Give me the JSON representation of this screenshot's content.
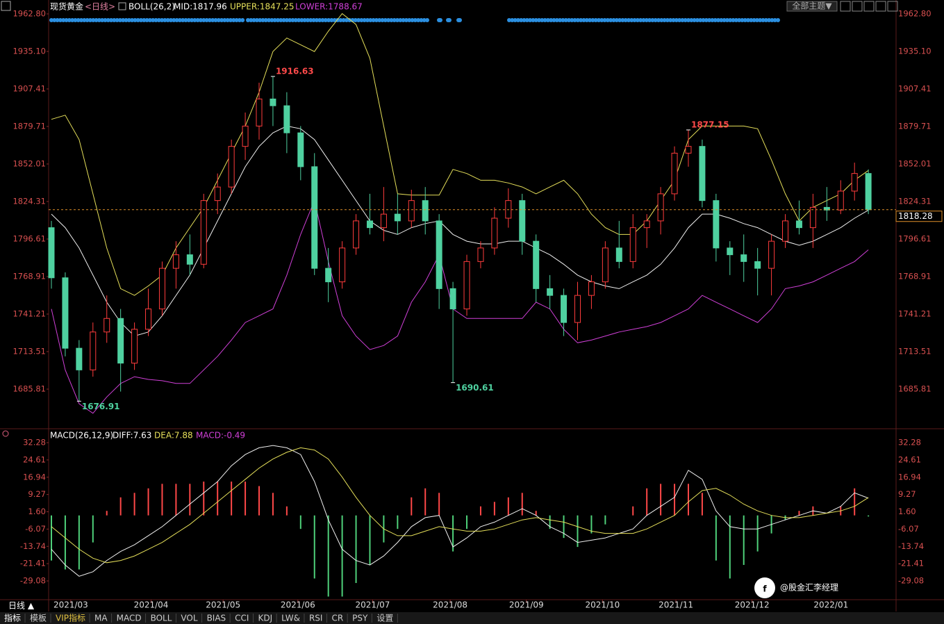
{
  "header": {
    "symbol": "现货黄金",
    "period": "<日线>",
    "indicator": "BOLL(26,2)",
    "mid": "MID:1817.96",
    "upper": "UPPER:1847.25",
    "lower": "LOWER:1788.67",
    "theme_button": "全部主题▼"
  },
  "macd_legend": {
    "name": "MACD(26,12,9)",
    "diff": "DIFF:7.63",
    "dea": "DEA:7.88",
    "macd": "MACD:-0.49"
  },
  "period_button": "日线 ▲",
  "tabs": [
    "指标",
    "模板",
    "VIP指标",
    "MA",
    "MACD",
    "BOLL",
    "VOL",
    "BIAS",
    "CCI",
    "KDJ",
    "LW&",
    "RSI",
    "CR",
    "PSY",
    "设置"
  ],
  "watermark": "@股金汇李经理",
  "chart_data": [
    {
      "type": "candlestick",
      "xlim": [
        -0.2,
        61
      ],
      "ylim": [
        1657.6,
        1965.36
      ],
      "yticks": [
        {
          "value": 1962.8,
          "label": "1962.80"
        },
        {
          "value": 1935.1,
          "label": "1935.10"
        },
        1907.41,
        1879.71,
        1852.01,
        1824.31,
        1796.61,
        1768.91,
        1741.21,
        1713.51,
        1685.81
      ],
      "up_color": "#ff3c3c",
      "down_color": "#4fd1a0",
      "open": [
        1805,
        1768,
        1716,
        1700,
        1728,
        1738,
        1705,
        1730,
        1745,
        1775,
        1785,
        1778,
        1825,
        1835,
        1865,
        1880,
        1900,
        1895,
        1875,
        1850,
        1775,
        1765,
        1790,
        1810,
        1805,
        1815,
        1810,
        1825,
        1810,
        1760,
        1745,
        1780,
        1790,
        1812,
        1825,
        1795,
        1760,
        1755,
        1735,
        1755,
        1765,
        1790,
        1780,
        1805,
        1810,
        1830,
        1860,
        1865,
        1825,
        1790,
        1785,
        1780,
        1775,
        1795,
        1810,
        1805,
        1820,
        1818,
        1832,
        1845
      ],
      "high": [
        1810,
        1772,
        1722,
        1735,
        1755,
        1745,
        1735,
        1760,
        1780,
        1795,
        1800,
        1830,
        1845,
        1870,
        1890,
        1912,
        1916.63,
        1905,
        1880,
        1860,
        1790,
        1795,
        1815,
        1830,
        1835,
        1830,
        1833,
        1835,
        1815,
        1765,
        1785,
        1795,
        1820,
        1834,
        1830,
        1800,
        1770,
        1760,
        1765,
        1770,
        1795,
        1810,
        1815,
        1815,
        1835,
        1865,
        1877.15,
        1870,
        1830,
        1795,
        1800,
        1790,
        1800,
        1815,
        1825,
        1830,
        1835,
        1840,
        1853,
        1848
      ],
      "low": [
        1760,
        1710,
        1676.91,
        1695,
        1720,
        1684,
        1700,
        1725,
        1740,
        1760,
        1770,
        1775,
        1815,
        1830,
        1855,
        1870,
        1880,
        1860,
        1840,
        1770,
        1750,
        1760,
        1785,
        1800,
        1795,
        1800,
        1805,
        1800,
        1745,
        1690.61,
        1740,
        1775,
        1785,
        1805,
        1785,
        1750,
        1745,
        1725,
        1722,
        1745,
        1760,
        1775,
        1775,
        1790,
        1800,
        1825,
        1850,
        1820,
        1780,
        1770,
        1765,
        1755,
        1755,
        1790,
        1800,
        1790,
        1810,
        1815,
        1825,
        1815
      ],
      "close": [
        1768,
        1716,
        1700,
        1728,
        1738,
        1705,
        1730,
        1745,
        1775,
        1785,
        1778,
        1825,
        1835,
        1865,
        1880,
        1900,
        1895,
        1875,
        1850,
        1775,
        1765,
        1790,
        1810,
        1805,
        1815,
        1810,
        1825,
        1810,
        1760,
        1745,
        1780,
        1790,
        1812,
        1825,
        1795,
        1760,
        1755,
        1735,
        1755,
        1765,
        1790,
        1780,
        1805,
        1810,
        1830,
        1860,
        1865,
        1825,
        1790,
        1785,
        1780,
        1775,
        1795,
        1810,
        1805,
        1820,
        1818,
        1832,
        1845,
        1818.28
      ],
      "series": [
        {
          "name": "MID",
          "color": "#f0f0f0",
          "values": [
            1815,
            1805,
            1790,
            1770,
            1750,
            1735,
            1725,
            1728,
            1740,
            1755,
            1770,
            1790,
            1810,
            1830,
            1850,
            1865,
            1875,
            1880,
            1878,
            1870,
            1855,
            1840,
            1825,
            1810,
            1803,
            1800,
            1805,
            1808,
            1810,
            1800,
            1795,
            1793,
            1793,
            1795,
            1795,
            1790,
            1785,
            1778,
            1770,
            1765,
            1762,
            1760,
            1765,
            1770,
            1778,
            1790,
            1805,
            1815,
            1815,
            1812,
            1808,
            1805,
            1800,
            1795,
            1792,
            1795,
            1800,
            1805,
            1812,
            1817.96
          ]
        },
        {
          "name": "UPPER",
          "color": "#e6e05a",
          "values": [
            1885,
            1888,
            1870,
            1830,
            1790,
            1760,
            1755,
            1762,
            1770,
            1790,
            1805,
            1820,
            1840,
            1860,
            1880,
            1905,
            1935,
            1945,
            1940,
            1935,
            1950,
            1963,
            1955,
            1930,
            1880,
            1830,
            1829,
            1829,
            1829,
            1848,
            1845,
            1840,
            1840,
            1838,
            1835,
            1830,
            1835,
            1840,
            1830,
            1815,
            1805,
            1800,
            1800,
            1810,
            1825,
            1840,
            1870,
            1880,
            1880,
            1880,
            1880,
            1878,
            1855,
            1830,
            1810,
            1820,
            1825,
            1830,
            1840,
            1847.25
          ]
        },
        {
          "name": "LOWER",
          "color": "#d040d8",
          "values": [
            1745,
            1700,
            1675,
            1668,
            1680,
            1690,
            1695,
            1693,
            1692,
            1690,
            1690,
            1700,
            1710,
            1722,
            1735,
            1740,
            1745,
            1770,
            1800,
            1825,
            1780,
            1740,
            1725,
            1715,
            1718,
            1725,
            1750,
            1765,
            1785,
            1745,
            1738,
            1738,
            1738,
            1738,
            1738,
            1750,
            1745,
            1730,
            1720,
            1722,
            1725,
            1728,
            1730,
            1732,
            1735,
            1740,
            1745,
            1755,
            1750,
            1745,
            1740,
            1735,
            1745,
            1760,
            1762,
            1765,
            1770,
            1775,
            1780,
            1788.67
          ]
        }
      ],
      "last_price_line_color": "#e0902a"
    },
    {
      "type": "macd",
      "xlim": [
        -0.2,
        61
      ],
      "ylim": [
        -37.09,
        33.82
      ],
      "yticks": [
        32.28,
        24.61,
        16.94,
        9.27,
        {
          "value": 1.6,
          "label": "1.60"
        },
        -6.07,
        -13.74,
        -21.41,
        -29.08
      ],
      "xticks": [
        {
          "value": 1.4,
          "label": "2021/03"
        },
        {
          "value": 7.2,
          "label": "2021/04"
        },
        {
          "value": 12.4,
          "label": "2021/05"
        },
        {
          "value": 17.8,
          "label": "2021/06"
        },
        {
          "value": 23.2,
          "label": "2021/07"
        },
        {
          "value": 28.8,
          "label": "2021/08"
        },
        {
          "value": 34.3,
          "label": "2021/09"
        },
        {
          "value": 39.8,
          "label": "2021/10"
        },
        {
          "value": 45.1,
          "label": "2021/11"
        },
        {
          "value": 50.6,
          "label": "2021/12"
        },
        {
          "value": 56.3,
          "label": "2022/01"
        }
      ],
      "up_color": "#ff4848",
      "down_color": "#4fd17a",
      "histogram": [
        -20,
        -24,
        -24,
        -12,
        2,
        8,
        10,
        12,
        14,
        14,
        14,
        15,
        15,
        15,
        15,
        13,
        10,
        4,
        -6,
        -28,
        -36,
        -36,
        -30,
        -22,
        -12,
        -6,
        8,
        12,
        10,
        -16,
        -6,
        4,
        6,
        8,
        10,
        2,
        -6,
        -10,
        -14,
        -8,
        -4,
        0,
        4,
        12,
        14,
        14,
        14,
        10,
        -20,
        -28,
        -22,
        -16,
        -8,
        -2,
        2,
        4,
        0,
        4,
        12,
        -0.49
      ],
      "series": [
        {
          "name": "DIFF",
          "color": "#f0f0f0",
          "values": [
            -15,
            -22,
            -27,
            -25,
            -20,
            -16,
            -13,
            -9,
            -5,
            0,
            5,
            10,
            15,
            22,
            27,
            30,
            31,
            30,
            27,
            15,
            -2,
            -15,
            -20,
            -22,
            -18,
            -12,
            -5,
            -1,
            0,
            -14,
            -10,
            -5,
            -3,
            0,
            3,
            0,
            -5,
            -8,
            -12,
            -11,
            -10,
            -8,
            -6,
            0,
            4,
            8,
            20,
            16,
            2,
            -5,
            -6,
            -6,
            -4,
            -2,
            0,
            2,
            1,
            4,
            10,
            7.63
          ]
        },
        {
          "name": "DEA",
          "color": "#e6e05a",
          "values": [
            -5,
            -10,
            -15,
            -19,
            -21,
            -20,
            -18,
            -15,
            -12,
            -8,
            -4,
            1,
            6,
            11,
            16,
            21,
            25,
            28,
            30,
            29,
            25,
            17,
            8,
            0,
            -6,
            -9,
            -9,
            -7,
            -5,
            -6,
            -7,
            -7,
            -6,
            -4,
            -2,
            -1,
            -2,
            -3,
            -5,
            -7,
            -8,
            -8,
            -8,
            -6,
            -3,
            0,
            6,
            11,
            12,
            9,
            5,
            2,
            0,
            -1,
            -1,
            0,
            1,
            2,
            4,
            7.88
          ]
        }
      ]
    }
  ]
}
